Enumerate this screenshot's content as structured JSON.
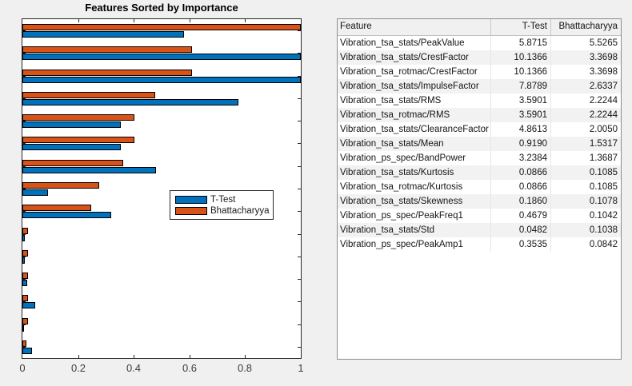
{
  "window": {
    "background": "#f0f0f0"
  },
  "chart_data": {
    "type": "bar",
    "orientation": "horizontal",
    "title": "Features Sorted by Importance",
    "categories": [
      "Vibration_tsa_stats/PeakValue",
      "Vibration_tsa_stats/CrestFactor",
      "Vibration_tsa_rotmac/CrestFactor",
      "Vibration_tsa_stats/ImpulseFactor",
      "Vibration_tsa_stats/RMS",
      "Vibration_tsa_rotmac/RMS",
      "Vibration_tsa_stats/ClearanceFactor",
      "Vibration_tsa_stats/Mean",
      "Vibration_ps_spec/BandPower",
      "Vibration_tsa_stats/Kurtosis",
      "Vibration_tsa_rotmac/Kurtosis",
      "Vibration_tsa_stats/Skewness",
      "Vibration_ps_spec/PeakFreq1",
      "Vibration_tsa_stats/Std",
      "Vibration_ps_spec/PeakAmp1"
    ],
    "series": [
      {
        "name": "T-Test",
        "color": "#0072BD",
        "values": [
          5.8715,
          10.1366,
          10.1366,
          7.8789,
          3.5901,
          3.5901,
          4.8613,
          0.919,
          3.2384,
          0.0866,
          0.0866,
          0.186,
          0.4679,
          0.0482,
          0.3535
        ]
      },
      {
        "name": "Bhattacharyya",
        "color": "#D95319",
        "values": [
          5.5265,
          3.3698,
          3.3698,
          2.6337,
          2.2244,
          2.2244,
          2.005,
          1.5317,
          1.3687,
          0.1085,
          0.1085,
          0.1078,
          0.1042,
          0.1038,
          0.0842
        ]
      }
    ],
    "bar_lengths_normalized_by": "per-series maximum",
    "bar_edge_color": "#000000",
    "xlabel": "",
    "ylabel": "",
    "xlim": [
      0,
      1
    ],
    "xticks": [
      0,
      0.2,
      0.4,
      0.6,
      0.8,
      1
    ],
    "grid": false,
    "legend": {
      "entries": [
        "T-Test",
        "Bhattacharyya"
      ],
      "position": "inside middle-right",
      "border": "#262626"
    }
  },
  "table": {
    "headers": [
      "Feature",
      "T-Test",
      "Bhattacharyya"
    ],
    "rows": [
      [
        "Vibration_tsa_stats/PeakValue",
        "5.8715",
        "5.5265"
      ],
      [
        "Vibration_tsa_stats/CrestFactor",
        "10.1366",
        "3.3698"
      ],
      [
        "Vibration_tsa_rotmac/CrestFactor",
        "10.1366",
        "3.3698"
      ],
      [
        "Vibration_tsa_stats/ImpulseFactor",
        "7.8789",
        "2.6337"
      ],
      [
        "Vibration_tsa_stats/RMS",
        "3.5901",
        "2.2244"
      ],
      [
        "Vibration_tsa_rotmac/RMS",
        "3.5901",
        "2.2244"
      ],
      [
        "Vibration_tsa_stats/ClearanceFactor",
        "4.8613",
        "2.0050"
      ],
      [
        "Vibration_tsa_stats/Mean",
        "0.9190",
        "1.5317"
      ],
      [
        "Vibration_ps_spec/BandPower",
        "3.2384",
        "1.3687"
      ],
      [
        "Vibration_tsa_stats/Kurtosis",
        "0.0866",
        "0.1085"
      ],
      [
        "Vibration_tsa_rotmac/Kurtosis",
        "0.0866",
        "0.1085"
      ],
      [
        "Vibration_tsa_stats/Skewness",
        "0.1860",
        "0.1078"
      ],
      [
        "Vibration_ps_spec/PeakFreq1",
        "0.4679",
        "0.1042"
      ],
      [
        "Vibration_tsa_stats/Std",
        "0.0482",
        "0.1038"
      ],
      [
        "Vibration_ps_spec/PeakAmp1",
        "0.3535",
        "0.0842"
      ]
    ],
    "stripe_color": "#f2f2f2"
  }
}
